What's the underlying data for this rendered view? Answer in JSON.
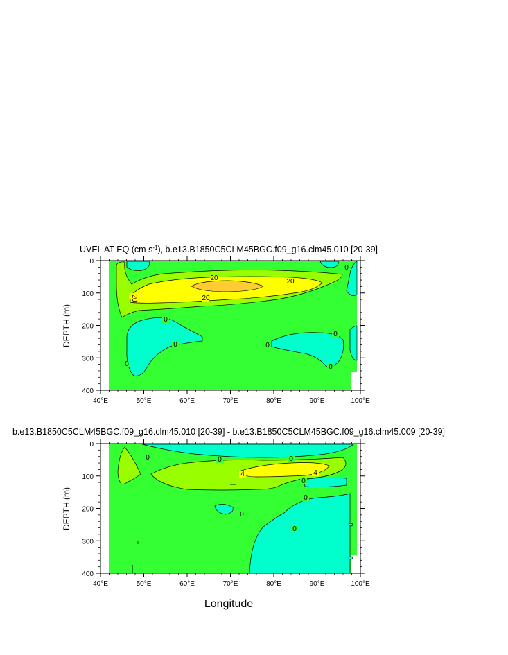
{
  "chart_data": [
    {
      "type": "contour",
      "title": "UVEL AT EQ (cm s^-1), b.e13.B1850C5CLM45BGC.f09_g16.clm45.010 [20-39]",
      "title_parts": [
        "UVEL AT EQ (cm s",
        "-1",
        "), b.e13.B1850C5CLM45BGC.f09_g16.clm45.010 [20-39]"
      ],
      "ylabel": "DEPTH (m)",
      "xlabel": "",
      "xlim": [
        40,
        100
      ],
      "ylim": [
        400,
        0
      ],
      "xticks": [
        40,
        50,
        60,
        70,
        80,
        90,
        100
      ],
      "xtick_labels": [
        "40°E",
        "50°E",
        "60°E",
        "70°E",
        "80°E",
        "90°E",
        "100°E"
      ],
      "yticks": [
        0,
        100,
        200,
        300,
        400
      ],
      "ytick_labels": [
        "0",
        "100",
        "200",
        "300",
        "400"
      ],
      "contour_labels": [
        "20",
        "20",
        "20",
        "20",
        "0",
        "0",
        "0",
        "0",
        "0",
        "0",
        "0"
      ],
      "fill_colors": {
        "negative": "#00FFCC",
        "low": "#33FF33",
        "mid": "#99FF00",
        "high": "#FFFF00",
        "peak": "#FFCC33",
        "land": "#FFFFFF"
      }
    },
    {
      "type": "contour",
      "title": "b.e13.B1850C5CLM45BGC.f09_g16.clm45.010 [20-39] - b.e13.B1850C5CLM45BGC.f09_g16.clm45.009 [20-39]",
      "ylabel": "DEPTH (m)",
      "xlabel": "Longitude",
      "xlim": [
        40,
        100
      ],
      "ylim": [
        400,
        0
      ],
      "xticks": [
        40,
        50,
        60,
        70,
        80,
        90,
        100
      ],
      "xtick_labels": [
        "40°E",
        "50°E",
        "60°E",
        "70°E",
        "80°E",
        "90°E",
        "100°E"
      ],
      "yticks": [
        0,
        100,
        200,
        300,
        400
      ],
      "ytick_labels": [
        "0",
        "100",
        "200",
        "300",
        "400"
      ],
      "contour_labels": [
        "0",
        "0",
        "0",
        "0",
        "0",
        "0",
        "0",
        "4",
        "4"
      ],
      "fill_colors": {
        "negative": "#00FFCC",
        "low": "#33FF33",
        "mid": "#99FF00",
        "high": "#FFFF00",
        "land": "#FFFFFF"
      }
    }
  ]
}
